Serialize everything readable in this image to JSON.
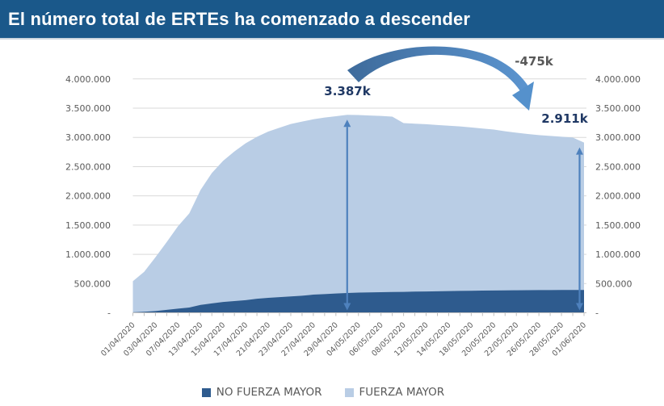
{
  "chart_data": {
    "type": "area",
    "stacked": true,
    "title": "El número total de ERTEs ha comenzado a descender",
    "categories": [
      "01/04/2020",
      "02/04/2020",
      "03/04/2020",
      "06/04/2020",
      "07/04/2020",
      "08/04/2020",
      "13/04/2020",
      "14/04/2020",
      "15/04/2020",
      "16/04/2020",
      "17/04/2020",
      "20/04/2020",
      "21/04/2020",
      "22/04/2020",
      "23/04/2020",
      "24/04/2020",
      "27/04/2020",
      "28/04/2020",
      "29/04/2020",
      "30/04/2020",
      "04/05/2020",
      "05/05/2020",
      "06/05/2020",
      "07/05/2020",
      "08/05/2020",
      "11/05/2020",
      "12/05/2020",
      "13/05/2020",
      "14/05/2020",
      "15/05/2020",
      "18/05/2020",
      "19/05/2020",
      "20/05/2020",
      "21/05/2020",
      "22/05/2020",
      "25/05/2020",
      "26/05/2020",
      "27/05/2020",
      "28/05/2020",
      "29/05/2020",
      "01/06/2020"
    ],
    "x_label_every": 2,
    "series": [
      {
        "name": "NO FUERZA MAYOR",
        "color": "#2E5B8E",
        "values": [
          8000,
          18000,
          30000,
          50000,
          70000,
          90000,
          135000,
          160000,
          185000,
          200000,
          215000,
          240000,
          255000,
          268000,
          280000,
          292000,
          310000,
          320000,
          330000,
          338000,
          345000,
          348000,
          352000,
          355000,
          358000,
          362000,
          365000,
          368000,
          371000,
          374000,
          377000,
          379000,
          381000,
          383000,
          385000,
          387000,
          388000,
          389000,
          390000,
          390000,
          390000
        ]
      },
      {
        "name": "FUERZA MAYOR",
        "color": "#B9CDE5",
        "values": [
          532000,
          682000,
          920000,
          1160000,
          1410000,
          1610000,
          1965000,
          2230000,
          2415000,
          2560000,
          2685000,
          2770000,
          2845000,
          2897000,
          2950000,
          2978000,
          3000000,
          3020000,
          3032000,
          3049000,
          3037000,
          3027000,
          3016000,
          3000000,
          2887000,
          2873000,
          2860000,
          2844000,
          2829000,
          2814000,
          2793000,
          2773000,
          2754000,
          2722000,
          2695000,
          2671000,
          2652000,
          2636000,
          2622000,
          2608000,
          2521000
        ]
      }
    ],
    "y_axis": {
      "min": 0,
      "max": 4000000,
      "step": 500000,
      "sides": "both",
      "tick_labels": [
        "-",
        "500.000",
        "1.000.000",
        "1.500.000",
        "2.000.000",
        "2.500.000",
        "3.000.000",
        "3.500.000",
        "4.000.000"
      ]
    },
    "grid": true,
    "legend_position": "bottom",
    "annotations": {
      "peak": {
        "index": 19,
        "label": "3.387k"
      },
      "end": {
        "index": 40,
        "label": "2.911k"
      },
      "change": {
        "label": "-475k"
      }
    }
  },
  "styles": {
    "titlebar_bg": "#1A588A",
    "axis_text": "#595959",
    "gridline": "#D9D9D9",
    "axis_line": "#BFBFBF",
    "arrow_accent": "#4E81BD",
    "annotation_navy": "#1F3864",
    "annotation_gray": "#595959"
  }
}
